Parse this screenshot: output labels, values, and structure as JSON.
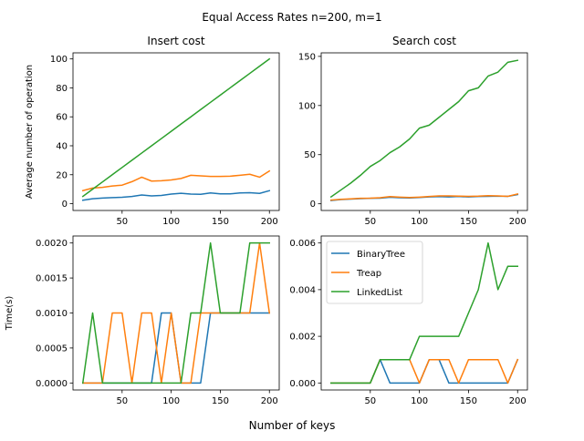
{
  "figure": {
    "suptitle": "Equal Access Rates n=200, m=1",
    "xlabel": "Number of keys"
  },
  "colors": {
    "BinaryTree": "#1f77b4",
    "Treap": "#ff7f0e",
    "LinkedList": "#2ca02c"
  },
  "chart_data": [
    {
      "type": "line",
      "title": "Insert cost",
      "xlabel": "",
      "ylabel": "Average number of operation",
      "xlim": [
        0,
        210
      ],
      "ylim": [
        -4.7,
        104.2
      ],
      "xticks": [
        50,
        100,
        150,
        200
      ],
      "yticks": [
        0,
        20,
        40,
        60,
        80,
        100
      ],
      "ytick_labels": [
        "0",
        "20",
        "40",
        "60",
        "80",
        "100"
      ],
      "grid": false,
      "x": [
        10,
        20,
        30,
        40,
        50,
        60,
        70,
        80,
        90,
        100,
        110,
        120,
        130,
        140,
        150,
        160,
        170,
        180,
        190,
        200
      ],
      "series": [
        {
          "name": "BinaryTree",
          "values": [
            2.4,
            3.4,
            3.9,
            4.2,
            4.4,
            5.0,
            6.0,
            5.4,
            5.7,
            6.6,
            7.2,
            6.6,
            6.5,
            7.4,
            6.8,
            6.8,
            7.4,
            7.6,
            7.1,
            9.0
          ]
        },
        {
          "name": "Treap",
          "values": [
            9.0,
            10.8,
            11.3,
            12.2,
            12.8,
            15.2,
            18.3,
            15.6,
            15.8,
            16.4,
            17.4,
            19.6,
            19.2,
            18.8,
            18.8,
            19.0,
            19.6,
            20.3,
            18.3,
            22.6
          ]
        },
        {
          "name": "LinkedList",
          "values": [
            5.0,
            10.0,
            15.0,
            20.0,
            25.0,
            30.0,
            35.0,
            40.0,
            45.0,
            50.0,
            55.0,
            60.0,
            65.0,
            70.0,
            75.0,
            80.0,
            85.0,
            90.0,
            95.0,
            100.0
          ]
        }
      ]
    },
    {
      "type": "line",
      "title": "Search cost",
      "xlabel": "",
      "ylabel": "",
      "xlim": [
        0,
        210
      ],
      "ylim": [
        -6.8,
        153.6
      ],
      "xticks": [
        50,
        100,
        150,
        200
      ],
      "yticks": [
        0,
        50,
        100,
        150
      ],
      "ytick_labels": [
        "0",
        "50",
        "100",
        "150"
      ],
      "grid": false,
      "x": [
        10,
        20,
        30,
        40,
        50,
        60,
        70,
        80,
        90,
        100,
        110,
        120,
        130,
        140,
        150,
        160,
        170,
        180,
        190,
        200
      ],
      "series": [
        {
          "name": "BinaryTree",
          "values": [
            3.4,
            4.3,
            4.8,
            5.2,
            5.6,
            5.7,
            6.6,
            6.2,
            6.0,
            6.4,
            7.0,
            7.3,
            7.0,
            7.4,
            7.0,
            7.4,
            7.6,
            7.8,
            7.6,
            9.4
          ]
        },
        {
          "name": "Treap",
          "values": [
            3.8,
            4.6,
            5.0,
            5.6,
            5.7,
            6.2,
            7.3,
            6.8,
            6.4,
            6.8,
            7.4,
            8.0,
            8.0,
            7.8,
            7.6,
            7.8,
            8.3,
            8.0,
            7.6,
            10.0
          ]
        },
        {
          "name": "LinkedList",
          "values": [
            7.0,
            14.0,
            21.0,
            29.0,
            38.0,
            44.0,
            52.0,
            58.0,
            66.0,
            77.0,
            80.0,
            88.0,
            96.0,
            104.0,
            115.0,
            118.0,
            130.0,
            134.0,
            144.0,
            146.0
          ]
        }
      ]
    },
    {
      "type": "line",
      "title": "",
      "xlabel": "",
      "ylabel": "Time(s)",
      "xlim": [
        0,
        210
      ],
      "ylim": [
        -0.0001,
        0.0021
      ],
      "xticks": [
        50,
        100,
        150,
        200
      ],
      "yticks": [
        0,
        0.0005,
        0.001,
        0.0015,
        0.002
      ],
      "ytick_labels": [
        "0.0000",
        "0.0005",
        "0.0010",
        "0.0015",
        "0.0020"
      ],
      "grid": false,
      "x": [
        10,
        20,
        30,
        40,
        50,
        60,
        70,
        80,
        90,
        100,
        110,
        120,
        130,
        140,
        150,
        160,
        170,
        180,
        190,
        200
      ],
      "series": [
        {
          "name": "BinaryTree",
          "values": [
            0,
            0,
            0,
            0,
            0,
            0,
            0,
            0,
            0.001,
            0.001,
            0,
            0,
            0,
            0.001,
            0.001,
            0.001,
            0.001,
            0.001,
            0.001,
            0.001
          ]
        },
        {
          "name": "Treap",
          "values": [
            0,
            0,
            0,
            0.001,
            0.001,
            0,
            0.001,
            0.001,
            0,
            0.001,
            0,
            0,
            0.001,
            0.001,
            0.001,
            0.001,
            0.001,
            0.001,
            0.002,
            0.001
          ]
        },
        {
          "name": "LinkedList",
          "values": [
            0,
            0.001,
            0,
            0,
            0,
            0,
            0,
            0,
            0,
            0,
            0,
            0.001,
            0.001,
            0.002,
            0.001,
            0.001,
            0.001,
            0.002,
            0.002,
            0.002
          ]
        }
      ]
    },
    {
      "type": "line",
      "title": "",
      "xlabel": "",
      "ylabel": "",
      "xlim": [
        0,
        210
      ],
      "ylim": [
        -0.0003,
        0.0063
      ],
      "xticks": [
        50,
        100,
        150,
        200
      ],
      "yticks": [
        0,
        0.002,
        0.004,
        0.006
      ],
      "ytick_labels": [
        "0.000",
        "0.002",
        "0.004",
        "0.006"
      ],
      "grid": false,
      "legend": {
        "placement": "upper-left",
        "entries": [
          "BinaryTree",
          "Treap",
          "LinkedList"
        ]
      },
      "x": [
        10,
        20,
        30,
        40,
        50,
        60,
        70,
        80,
        90,
        100,
        110,
        120,
        130,
        140,
        150,
        160,
        170,
        180,
        190,
        200
      ],
      "series": [
        {
          "name": "BinaryTree",
          "values": [
            0,
            0,
            0,
            0,
            0,
            0.001,
            0,
            0,
            0,
            0,
            0.001,
            0.001,
            0,
            0,
            0,
            0,
            0,
            0,
            0,
            0.001
          ]
        },
        {
          "name": "Treap",
          "values": [
            0,
            0,
            0,
            0,
            0,
            0.001,
            0.001,
            0.001,
            0.001,
            0,
            0.001,
            0.001,
            0.001,
            0,
            0.001,
            0.001,
            0.001,
            0.001,
            0,
            0.001
          ]
        },
        {
          "name": "LinkedList",
          "values": [
            0,
            0,
            0,
            0,
            0,
            0.001,
            0.001,
            0.001,
            0.001,
            0.002,
            0.002,
            0.002,
            0.002,
            0.002,
            0.003,
            0.004,
            0.006,
            0.004,
            0.005,
            0.005
          ]
        }
      ]
    }
  ]
}
